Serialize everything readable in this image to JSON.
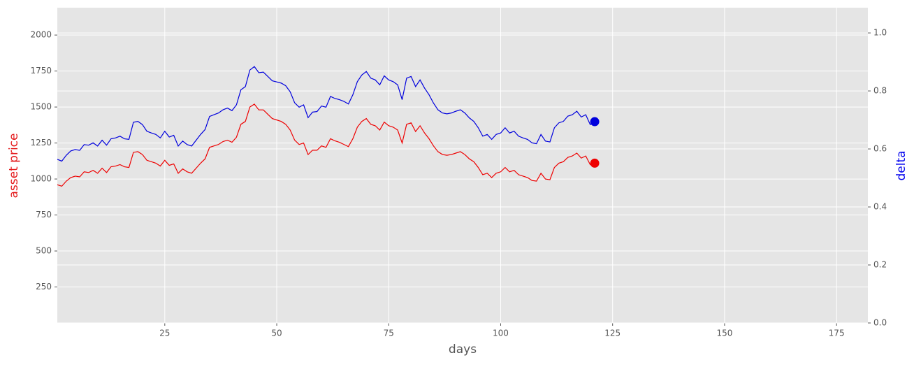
{
  "chart_data": {
    "type": "line",
    "xlabel": "days",
    "ylabel": "asset price",
    "y2label": "delta",
    "ylabel_color": "#e41a1c",
    "y2label_color": "#0000ee",
    "x": [
      1,
      2,
      3,
      4,
      5,
      6,
      7,
      8,
      9,
      10,
      11,
      12,
      13,
      14,
      15,
      16,
      17,
      18,
      19,
      20,
      21,
      22,
      23,
      24,
      25,
      26,
      27,
      28,
      29,
      30,
      31,
      32,
      33,
      34,
      35,
      36,
      37,
      38,
      39,
      40,
      41,
      42,
      43,
      44,
      45,
      46,
      47,
      48,
      49,
      50,
      51,
      52,
      53,
      54,
      55,
      56,
      57,
      58,
      59,
      60,
      61,
      62,
      63,
      64,
      65,
      66,
      67,
      68,
      69,
      70,
      71,
      72,
      73,
      74,
      75,
      76,
      77,
      78,
      79,
      80,
      81,
      82,
      83,
      84,
      85,
      86,
      87,
      88,
      89,
      90,
      91,
      92,
      93,
      94,
      95,
      96,
      97,
      98,
      99,
      100,
      101,
      102,
      103,
      104,
      105,
      106,
      107,
      108,
      109,
      110,
      111,
      112,
      113,
      114,
      115,
      116,
      117,
      118,
      119,
      120,
      121
    ],
    "series": [
      {
        "color": "#ee0000",
        "axis": "y",
        "last_marker": true,
        "values": [
          960,
          950,
          985,
          1010,
          1020,
          1015,
          1050,
          1045,
          1060,
          1040,
          1075,
          1045,
          1085,
          1090,
          1100,
          1085,
          1080,
          1185,
          1190,
          1170,
          1130,
          1120,
          1110,
          1090,
          1130,
          1095,
          1105,
          1040,
          1070,
          1050,
          1040,
          1075,
          1110,
          1140,
          1220,
          1230,
          1240,
          1260,
          1270,
          1255,
          1290,
          1380,
          1400,
          1500,
          1520,
          1480,
          1480,
          1450,
          1420,
          1410,
          1400,
          1380,
          1340,
          1270,
          1240,
          1250,
          1170,
          1200,
          1200,
          1230,
          1220,
          1280,
          1265,
          1255,
          1240,
          1225,
          1280,
          1360,
          1400,
          1420,
          1380,
          1370,
          1340,
          1395,
          1370,
          1360,
          1340,
          1250,
          1380,
          1390,
          1330,
          1370,
          1320,
          1280,
          1230,
          1190,
          1170,
          1165,
          1170,
          1180,
          1190,
          1170,
          1140,
          1120,
          1080,
          1030,
          1040,
          1010,
          1040,
          1050,
          1080,
          1050,
          1060,
          1030,
          1020,
          1010,
          990,
          985,
          1040,
          1000,
          995,
          1080,
          1110,
          1120,
          1150,
          1160,
          1180,
          1145,
          1160,
          1100,
          1110
        ]
      },
      {
        "color": "#0000dd",
        "axis": "y2",
        "last_marker": true,
        "values": [
          0.564,
          0.558,
          0.578,
          0.593,
          0.598,
          0.595,
          0.615,
          0.613,
          0.621,
          0.61,
          0.63,
          0.613,
          0.635,
          0.638,
          0.644,
          0.635,
          0.633,
          0.692,
          0.695,
          0.684,
          0.661,
          0.655,
          0.65,
          0.638,
          0.661,
          0.641,
          0.647,
          0.61,
          0.627,
          0.615,
          0.61,
          0.63,
          0.65,
          0.667,
          0.712,
          0.718,
          0.724,
          0.735,
          0.741,
          0.732,
          0.752,
          0.804,
          0.815,
          0.872,
          0.884,
          0.863,
          0.865,
          0.85,
          0.835,
          0.831,
          0.827,
          0.818,
          0.797,
          0.759,
          0.744,
          0.752,
          0.708,
          0.727,
          0.729,
          0.748,
          0.744,
          0.781,
          0.774,
          0.77,
          0.764,
          0.755,
          0.787,
          0.832,
          0.855,
          0.867,
          0.844,
          0.838,
          0.821,
          0.852,
          0.838,
          0.832,
          0.821,
          0.77,
          0.844,
          0.85,
          0.815,
          0.838,
          0.81,
          0.787,
          0.758,
          0.735,
          0.724,
          0.721,
          0.724,
          0.73,
          0.735,
          0.724,
          0.707,
          0.695,
          0.673,
          0.644,
          0.65,
          0.633,
          0.65,
          0.655,
          0.673,
          0.655,
          0.661,
          0.644,
          0.638,
          0.633,
          0.621,
          0.618,
          0.65,
          0.627,
          0.624,
          0.673,
          0.69,
          0.695,
          0.713,
          0.718,
          0.73,
          0.71,
          0.718,
          0.684,
          0.694
        ]
      }
    ],
    "xlim": [
      1,
      182
    ],
    "xticks": [
      25,
      50,
      75,
      100,
      125,
      150,
      175
    ],
    "ylim": [
      0,
      2190
    ],
    "yticks": [
      250,
      500,
      750,
      1000,
      1250,
      1500,
      1750,
      2000
    ],
    "y2lim": [
      0,
      1.087
    ],
    "y2ticks": [
      {
        "value": 0,
        "label": "0.0"
      },
      0.2,
      0.4,
      0.6,
      0.8,
      {
        "value": 1,
        "label": "1.0"
      }
    ],
    "grid": true
  }
}
